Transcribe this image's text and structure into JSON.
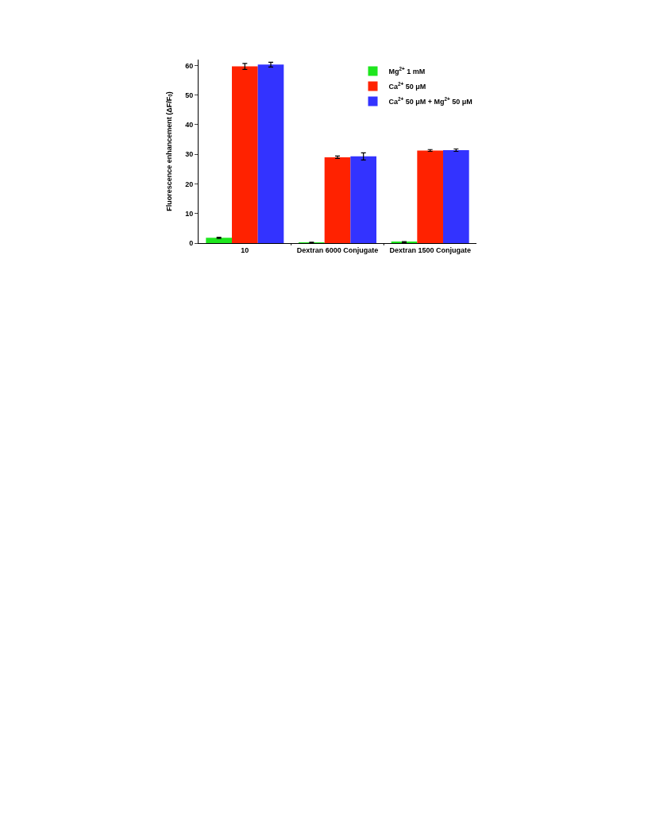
{
  "chart_data": {
    "type": "bar",
    "ylabel": "Fluorescence enhancement (ΔF/F$_{0}$)",
    "categories": [
      "10",
      "Dextran 6000 Conjugate",
      "Dextran 1500 Conjugate"
    ],
    "series": [
      {
        "name": "Mg$^{2+}$ 1 mM",
        "color": "#1ee61e",
        "values": [
          1.8,
          0.2,
          0.3
        ],
        "errors": [
          0.2,
          0.1,
          0.2
        ]
      },
      {
        "name": "Ca$^{2+}$ 50 μM",
        "color": "#ff2200",
        "values": [
          59.7,
          29.0,
          31.3
        ],
        "errors": [
          1.0,
          0.4,
          0.3
        ]
      },
      {
        "name": "Ca$^{2+}$ 50 μM + Mg$^{2+}$ 50 μM",
        "color": "#3333ff",
        "values": [
          60.3,
          29.3,
          31.4
        ],
        "errors": [
          0.8,
          1.2,
          0.4
        ]
      }
    ],
    "ylim": [
      0,
      62
    ],
    "yticks": [
      0,
      10,
      20,
      30,
      40,
      50,
      60
    ],
    "legend": "top right"
  }
}
